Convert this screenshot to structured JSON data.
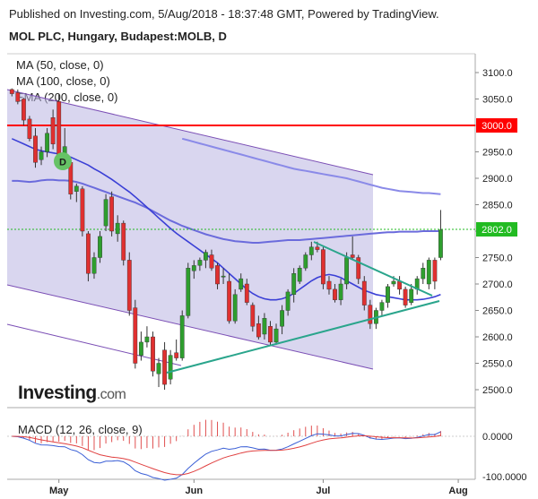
{
  "header": {
    "published": "Published on Investing.com, 5/Aug/2018 - 18:37:48 GMT, Powered by TradingView.",
    "title": "MOL PLC, Hungary, Budapest:MOLB, D"
  },
  "indicators": [
    "MA (50, close, 0)",
    "MA (100, close, 0)",
    "EMA (200, close, 0)"
  ],
  "logo": {
    "brand": "Investing",
    "suffix": ".com"
  },
  "macd": {
    "label": "MACD (12, 26, close, 9)",
    "ticks": [
      "0.0000",
      "-100.0000"
    ]
  },
  "marker": {
    "label": "D",
    "color": "#66c266"
  },
  "colors": {
    "up": "#2e9e2e",
    "down": "#e03030",
    "ma50": "#3a3fd6",
    "ma100": "#6b6bdc",
    "ema200": "#8a8ae8",
    "channel": "#7b4fb5",
    "triangle": "#2aa58c",
    "resistance": "#ff0000",
    "price_line": "#22bb22"
  },
  "chart_data": {
    "type": "candlestick",
    "y_ticks": [
      3100,
      3050,
      3000,
      2950,
      2900,
      2850,
      2800,
      2750,
      2700,
      2650,
      2600,
      2550,
      2500
    ],
    "y_tick_labels": [
      "3100.0",
      "3050.0",
      "3000.0",
      "2950.0",
      "2900.0",
      "2850.0",
      "2800.0",
      "2750.0",
      "2700.0",
      "2650.0",
      "2600.0",
      "2550.0",
      "2500.0"
    ],
    "ylim": [
      2470,
      3135
    ],
    "x_labels": [
      {
        "label": "May",
        "idx": 8
      },
      {
        "label": "Jun",
        "idx": 31
      },
      {
        "label": "Jul",
        "idx": 53
      },
      {
        "label": "Aug",
        "idx": 76
      }
    ],
    "last_price": {
      "value": 2802,
      "label": "2802.0"
    },
    "resistance": {
      "value": 3000,
      "label": "3000.0"
    },
    "candles": [
      [
        3068,
        3070,
        3055,
        3060
      ],
      [
        3062,
        3068,
        3040,
        3045
      ],
      [
        3050,
        3052,
        3000,
        3010
      ],
      [
        3012,
        3018,
        2970,
        2975
      ],
      [
        2980,
        2995,
        2920,
        2930
      ],
      [
        2935,
        2960,
        2925,
        2950
      ],
      [
        2950,
        2995,
        2940,
        2985
      ],
      [
        3015,
        3030,
        2955,
        2965
      ],
      [
        3045,
        3060,
        2935,
        2945
      ],
      [
        2940,
        2995,
        2935,
        2960
      ],
      [
        2930,
        2935,
        2860,
        2870
      ],
      [
        2875,
        2890,
        2855,
        2885
      ],
      [
        2880,
        2885,
        2790,
        2800
      ],
      [
        2795,
        2800,
        2705,
        2720
      ],
      [
        2720,
        2760,
        2710,
        2750
      ],
      [
        2750,
        2800,
        2740,
        2790
      ],
      [
        2810,
        2870,
        2800,
        2860
      ],
      [
        2865,
        2875,
        2790,
        2800
      ],
      [
        2795,
        2830,
        2780,
        2815
      ],
      [
        2815,
        2820,
        2735,
        2745
      ],
      [
        2745,
        2760,
        2640,
        2650
      ],
      [
        2655,
        2670,
        2540,
        2550
      ],
      [
        2565,
        2610,
        2555,
        2590
      ],
      [
        2590,
        2620,
        2580,
        2600
      ],
      [
        2600,
        2610,
        2525,
        2535
      ],
      [
        2530,
        2560,
        2505,
        2550
      ],
      [
        2575,
        2590,
        2500,
        2510
      ],
      [
        2520,
        2575,
        2510,
        2565
      ],
      [
        2570,
        2595,
        2555,
        2560
      ],
      [
        2560,
        2650,
        2555,
        2640
      ],
      [
        2640,
        2740,
        2635,
        2730
      ],
      [
        2725,
        2745,
        2710,
        2735
      ],
      [
        2735,
        2750,
        2725,
        2745
      ],
      [
        2745,
        2765,
        2730,
        2760
      ],
      [
        2755,
        2765,
        2725,
        2730
      ],
      [
        2735,
        2740,
        2690,
        2700
      ],
      [
        2715,
        2730,
        2700,
        2715
      ],
      [
        2705,
        2720,
        2625,
        2630
      ],
      [
        2630,
        2690,
        2625,
        2680
      ],
      [
        2690,
        2720,
        2685,
        2710
      ],
      [
        2700,
        2710,
        2660,
        2665
      ],
      [
        2660,
        2665,
        2610,
        2620
      ],
      [
        2625,
        2640,
        2595,
        2600
      ],
      [
        2605,
        2645,
        2595,
        2635
      ],
      [
        2620,
        2630,
        2585,
        2590
      ],
      [
        2590,
        2625,
        2585,
        2615
      ],
      [
        2620,
        2660,
        2605,
        2650
      ],
      [
        2650,
        2690,
        2640,
        2685
      ],
      [
        2680,
        2730,
        2665,
        2720
      ],
      [
        2705,
        2735,
        2700,
        2730
      ],
      [
        2730,
        2760,
        2725,
        2755
      ],
      [
        2755,
        2780,
        2745,
        2770
      ],
      [
        2770,
        2780,
        2760,
        2765
      ],
      [
        2765,
        2770,
        2690,
        2700
      ],
      [
        2705,
        2715,
        2680,
        2690
      ],
      [
        2690,
        2700,
        2665,
        2670
      ],
      [
        2670,
        2710,
        2660,
        2700
      ],
      [
        2700,
        2760,
        2690,
        2750
      ],
      [
        2755,
        2790,
        2745,
        2750
      ],
      [
        2750,
        2755,
        2700,
        2710
      ],
      [
        2705,
        2715,
        2650,
        2660
      ],
      [
        2660,
        2670,
        2615,
        2625
      ],
      [
        2625,
        2655,
        2615,
        2650
      ],
      [
        2650,
        2670,
        2640,
        2665
      ],
      [
        2665,
        2700,
        2655,
        2695
      ],
      [
        2700,
        2715,
        2695,
        2705
      ],
      [
        2705,
        2715,
        2680,
        2690
      ],
      [
        2690,
        2695,
        2655,
        2660
      ],
      [
        2665,
        2700,
        2660,
        2690
      ],
      [
        2690,
        2715,
        2680,
        2710
      ],
      [
        2710,
        2740,
        2700,
        2730
      ],
      [
        2700,
        2750,
        2690,
        2745
      ],
      [
        2745,
        2750,
        2690,
        2705
      ],
      [
        2750,
        2840,
        2745,
        2802
      ]
    ],
    "series": [
      {
        "name": "MA (50, close, 0)",
        "values": [
          2975,
          2970,
          2965,
          2960,
          2955,
          2952,
          2950,
          2948,
          2946,
          2943,
          2940,
          2935,
          2930,
          2925,
          2918,
          2912,
          2905,
          2898,
          2890,
          2882,
          2874,
          2865,
          2855,
          2845,
          2835,
          2825,
          2815,
          2805,
          2796,
          2788,
          2780,
          2772,
          2764,
          2756,
          2748,
          2740,
          2730,
          2720,
          2710,
          2700,
          2690,
          2682,
          2676,
          2672,
          2670,
          2670,
          2672,
          2676,
          2682,
          2690,
          2698,
          2706,
          2712,
          2716,
          2718,
          2716,
          2712,
          2706,
          2700,
          2694,
          2688,
          2684,
          2680,
          2678,
          2676,
          2674,
          2672,
          2670,
          2670,
          2670,
          2671,
          2673,
          2676,
          2680
        ]
      },
      {
        "name": "MA (100, close, 0)",
        "values": [
          2895,
          2895,
          2894,
          2893,
          2894,
          2896,
          2897,
          2897,
          2896,
          2896,
          2895,
          2893,
          2890,
          2886,
          2882,
          2878,
          2874,
          2870,
          2866,
          2862,
          2858,
          2854,
          2849,
          2844,
          2838,
          2832,
          2826,
          2820,
          2815,
          2810,
          2806,
          2802,
          2798,
          2794,
          2791,
          2788,
          2785,
          2783,
          2781,
          2780,
          2779,
          2778,
          2778,
          2779,
          2780,
          2781,
          2782,
          2783,
          2783,
          2783,
          2784,
          2785,
          2786,
          2787,
          2788,
          2789,
          2790,
          2791,
          2792,
          2793,
          2794,
          2795,
          2796,
          2797,
          2798,
          2798,
          2799,
          2799,
          2799,
          2799,
          2800,
          2800,
          2800,
          2800
        ]
      }
    ],
    "ema200_segment": {
      "start_idx": 29,
      "values": [
        2975,
        2972,
        2969,
        2966,
        2963,
        2960,
        2957,
        2954,
        2951,
        2948,
        2945,
        2942,
        2939,
        2936,
        2933,
        2930,
        2927,
        2924,
        2921,
        2918,
        2916,
        2914,
        2912,
        2910,
        2908,
        2906,
        2904,
        2902,
        2900,
        2897,
        2894,
        2891,
        2888,
        2885,
        2882,
        2880,
        2878,
        2876,
        2875,
        2874,
        2873,
        2872,
        2872,
        2871,
        2870
      ]
    }
  }
}
